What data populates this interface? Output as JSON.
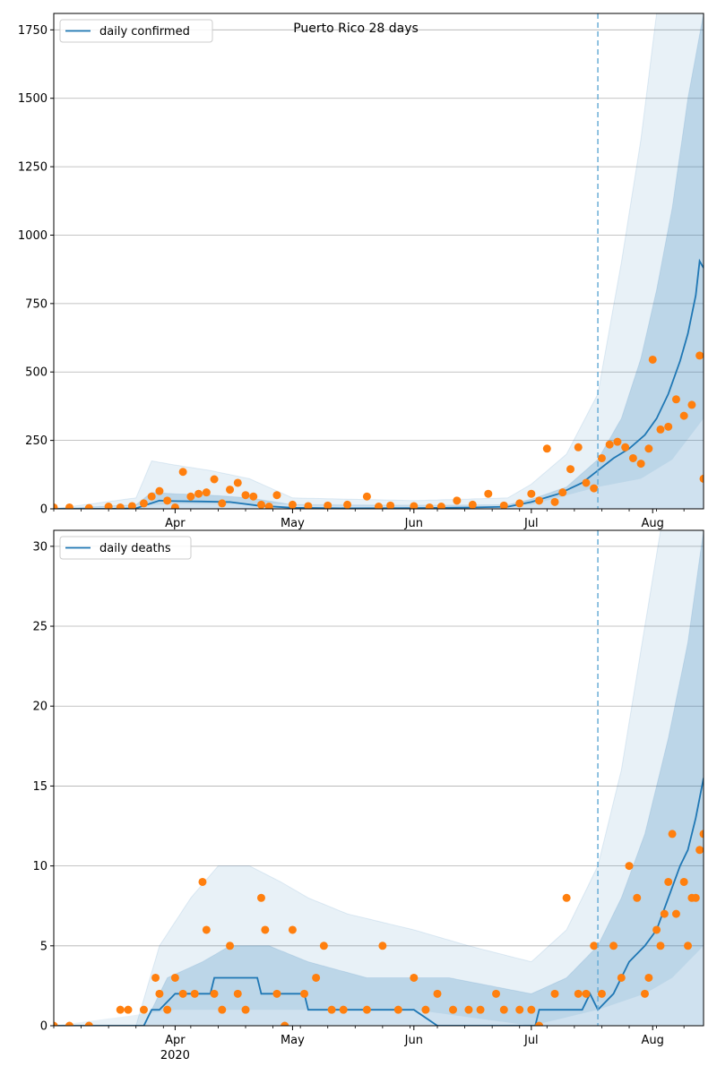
{
  "chart_data": [
    {
      "type": "line",
      "title": "Puerto Rico 28 days",
      "xlabel": "",
      "ylabel": "",
      "ylim": [
        0,
        1810
      ],
      "yticks": [
        0,
        250,
        500,
        750,
        1000,
        1250,
        1500,
        1750
      ],
      "xlim": [
        "2020-03-01",
        "2020-08-14"
      ],
      "x_major_ticks": [
        {
          "date": "2020-04-01",
          "label": "Apr",
          "sublabel": "2020"
        },
        {
          "date": "2020-05-01",
          "label": "May"
        },
        {
          "date": "2020-06-01",
          "label": "Jun"
        },
        {
          "date": "2020-07-01",
          "label": "Jul"
        },
        {
          "date": "2020-08-01",
          "label": "Aug"
        }
      ],
      "grid": "horizontal",
      "legend_position": "top-left",
      "forecast_start": "2020-07-18",
      "series": [
        {
          "name": "daily confirmed",
          "kind": "median line",
          "color": "#1f77b4",
          "x": [
            "2020-03-01",
            "2020-03-15",
            "2020-03-22",
            "2020-03-28",
            "2020-04-01",
            "2020-04-08",
            "2020-04-15",
            "2020-04-22",
            "2020-05-01",
            "2020-05-15",
            "2020-06-01",
            "2020-06-15",
            "2020-06-25",
            "2020-07-01",
            "2020-07-08",
            "2020-07-14",
            "2020-07-18",
            "2020-07-22",
            "2020-07-26",
            "2020-07-30",
            "2020-08-02",
            "2020-08-05",
            "2020-08-08",
            "2020-08-10",
            "2020-08-12",
            "2020-08-13",
            "2020-08-14"
          ],
          "values": [
            0,
            0,
            2,
            30,
            28,
            27,
            25,
            12,
            4,
            2,
            3,
            5,
            8,
            25,
            55,
            95,
            140,
            185,
            220,
            270,
            330,
            420,
            540,
            640,
            780,
            905,
            880
          ]
        },
        {
          "name": "observed daily confirmed",
          "kind": "points",
          "color": "#ff7f0e",
          "x": [
            "2020-03-01",
            "2020-03-05",
            "2020-03-10",
            "2020-03-15",
            "2020-03-18",
            "2020-03-21",
            "2020-03-24",
            "2020-03-26",
            "2020-03-28",
            "2020-03-30",
            "2020-04-01",
            "2020-04-03",
            "2020-04-05",
            "2020-04-07",
            "2020-04-09",
            "2020-04-11",
            "2020-04-13",
            "2020-04-15",
            "2020-04-17",
            "2020-04-19",
            "2020-04-21",
            "2020-04-23",
            "2020-04-25",
            "2020-04-27",
            "2020-05-01",
            "2020-05-05",
            "2020-05-10",
            "2020-05-15",
            "2020-05-20",
            "2020-05-23",
            "2020-05-26",
            "2020-06-01",
            "2020-06-05",
            "2020-06-08",
            "2020-06-12",
            "2020-06-16",
            "2020-06-20",
            "2020-06-24",
            "2020-06-28",
            "2020-07-01",
            "2020-07-03",
            "2020-07-05",
            "2020-07-07",
            "2020-07-09",
            "2020-07-11",
            "2020-07-13",
            "2020-07-15",
            "2020-07-17",
            "2020-07-19",
            "2020-07-21",
            "2020-07-23",
            "2020-07-25",
            "2020-07-27",
            "2020-07-29",
            "2020-07-31",
            "2020-08-01",
            "2020-08-03",
            "2020-08-05",
            "2020-08-07",
            "2020-08-09",
            "2020-08-11",
            "2020-08-13",
            "2020-08-14"
          ],
          "values": [
            5,
            5,
            3,
            8,
            5,
            10,
            20,
            45,
            65,
            30,
            5,
            135,
            45,
            55,
            60,
            108,
            20,
            70,
            95,
            50,
            45,
            15,
            8,
            50,
            15,
            10,
            12,
            15,
            45,
            8,
            12,
            10,
            5,
            8,
            30,
            15,
            55,
            12,
            20,
            55,
            30,
            220,
            25,
            60,
            145,
            225,
            95,
            75,
            185,
            235,
            245,
            225,
            185,
            165,
            220,
            545,
            290,
            300,
            400,
            340,
            380,
            560,
            110
          ]
        },
        {
          "name": "90% interval upper",
          "kind": "band edge",
          "color": "#1f77b4",
          "x": [
            "2020-03-01",
            "2020-03-22",
            "2020-03-26",
            "2020-04-01",
            "2020-04-10",
            "2020-04-20",
            "2020-05-01",
            "2020-06-01",
            "2020-06-25",
            "2020-07-01",
            "2020-07-10",
            "2020-07-18",
            "2020-07-24",
            "2020-07-29",
            "2020-08-02",
            "2020-08-05",
            "2020-08-14"
          ],
          "values": [
            0,
            40,
            175,
            160,
            140,
            110,
            40,
            30,
            40,
            90,
            200,
            420,
            900,
            1350,
            1810,
            1810,
            1810
          ]
        },
        {
          "name": "50% interval upper",
          "kind": "band edge",
          "color": "#1f77b4",
          "x": [
            "2020-03-01",
            "2020-03-22",
            "2020-03-26",
            "2020-04-01",
            "2020-04-10",
            "2020-04-20",
            "2020-05-01",
            "2020-06-01",
            "2020-06-25",
            "2020-07-01",
            "2020-07-10",
            "2020-07-18",
            "2020-07-24",
            "2020-07-29",
            "2020-08-02",
            "2020-08-06",
            "2020-08-10",
            "2020-08-14"
          ],
          "values": [
            0,
            15,
            60,
            55,
            50,
            40,
            15,
            10,
            15,
            35,
            80,
            180,
            330,
            550,
            800,
            1100,
            1500,
            1810
          ]
        },
        {
          "name": "20% interval lower",
          "kind": "band edge",
          "color": "#1f77b4",
          "x": [
            "2020-03-01",
            "2020-04-01",
            "2020-07-01",
            "2020-07-18",
            "2020-07-29",
            "2020-08-06",
            "2020-08-14"
          ],
          "values": [
            0,
            18,
            15,
            80,
            110,
            180,
            330
          ]
        }
      ]
    },
    {
      "type": "line",
      "title": "",
      "xlabel": "",
      "ylabel": "",
      "ylim": [
        0,
        31
      ],
      "yticks": [
        0,
        5,
        10,
        15,
        20,
        25,
        30
      ],
      "xlim": [
        "2020-03-01",
        "2020-08-14"
      ],
      "x_major_ticks": [
        {
          "date": "2020-04-01",
          "label": "Apr",
          "sublabel": "2020"
        },
        {
          "date": "2020-05-01",
          "label": "May"
        },
        {
          "date": "2020-06-01",
          "label": "Jun"
        },
        {
          "date": "2020-07-01",
          "label": "Jul"
        },
        {
          "date": "2020-08-01",
          "label": "Aug"
        }
      ],
      "grid": "horizontal",
      "legend_position": "top-left",
      "forecast_start": "2020-07-18",
      "series": [
        {
          "name": "daily deaths",
          "kind": "median line",
          "color": "#1f77b4",
          "x": [
            "2020-03-01",
            "2020-03-24",
            "2020-03-26",
            "2020-03-28",
            "2020-04-01",
            "2020-04-10",
            "2020-04-11",
            "2020-04-22",
            "2020-04-23",
            "2020-05-04",
            "2020-05-05",
            "2020-06-01",
            "2020-06-07",
            "2020-07-02",
            "2020-07-03",
            "2020-07-12",
            "2020-07-14",
            "2020-07-16",
            "2020-07-18",
            "2020-07-22",
            "2020-07-26",
            "2020-07-30",
            "2020-08-02",
            "2020-08-05",
            "2020-08-08",
            "2020-08-10",
            "2020-08-12",
            "2020-08-14"
          ],
          "values": [
            0,
            0,
            1,
            1,
            2,
            2,
            3,
            3,
            2,
            2,
            1,
            1,
            0,
            0,
            1,
            1,
            1,
            2,
            1,
            2,
            4,
            5,
            6,
            8,
            10,
            11,
            13,
            15.5
          ]
        },
        {
          "name": "observed daily deaths",
          "kind": "points",
          "color": "#ff7f0e",
          "x": [
            "2020-03-01",
            "2020-03-05",
            "2020-03-10",
            "2020-03-18",
            "2020-03-20",
            "2020-03-24",
            "2020-03-27",
            "2020-03-28",
            "2020-03-30",
            "2020-04-01",
            "2020-04-03",
            "2020-04-06",
            "2020-04-08",
            "2020-04-09",
            "2020-04-11",
            "2020-04-13",
            "2020-04-15",
            "2020-04-17",
            "2020-04-19",
            "2020-04-23",
            "2020-04-24",
            "2020-04-27",
            "2020-04-29",
            "2020-05-01",
            "2020-05-04",
            "2020-05-07",
            "2020-05-09",
            "2020-05-11",
            "2020-05-14",
            "2020-05-20",
            "2020-05-24",
            "2020-05-28",
            "2020-06-01",
            "2020-06-04",
            "2020-06-07",
            "2020-06-11",
            "2020-06-15",
            "2020-06-18",
            "2020-06-22",
            "2020-06-24",
            "2020-06-28",
            "2020-07-01",
            "2020-07-03",
            "2020-07-07",
            "2020-07-10",
            "2020-07-13",
            "2020-07-15",
            "2020-07-17",
            "2020-07-19",
            "2020-07-22",
            "2020-07-24",
            "2020-07-26",
            "2020-07-28",
            "2020-07-30",
            "2020-07-31",
            "2020-08-02",
            "2020-08-03",
            "2020-08-04",
            "2020-08-05",
            "2020-08-06",
            "2020-08-07",
            "2020-08-09",
            "2020-08-10",
            "2020-08-11",
            "2020-08-12",
            "2020-08-13",
            "2020-08-14"
          ],
          "values": [
            0,
            0,
            0,
            1,
            1,
            1,
            3,
            2,
            1,
            3,
            2,
            2,
            9,
            6,
            2,
            1,
            5,
            2,
            1,
            8,
            6,
            2,
            0,
            6,
            2,
            3,
            5,
            1,
            1,
            1,
            5,
            1,
            3,
            1,
            2,
            1,
            1,
            1,
            2,
            1,
            1,
            1,
            0,
            2,
            8,
            2,
            2,
            5,
            2,
            5,
            3,
            10,
            8,
            2,
            3,
            6,
            5,
            7,
            9,
            12,
            7,
            9,
            5,
            8,
            8,
            11,
            12
          ]
        },
        {
          "name": "90% interval upper",
          "kind": "band edge",
          "color": "#1f77b4",
          "x": [
            "2020-03-01",
            "2020-03-22",
            "2020-03-28",
            "2020-04-05",
            "2020-04-12",
            "2020-04-20",
            "2020-04-28",
            "2020-05-05",
            "2020-05-15",
            "2020-06-01",
            "2020-06-15",
            "2020-07-01",
            "2020-07-10",
            "2020-07-18",
            "2020-07-24",
            "2020-07-30",
            "2020-08-03",
            "2020-08-14"
          ],
          "values": [
            0,
            0,
            5,
            8,
            10,
            10,
            9,
            8,
            7,
            6,
            5,
            4,
            6,
            10,
            16,
            25,
            31,
            31
          ]
        },
        {
          "name": "50% interval upper",
          "kind": "band edge",
          "color": "#1f77b4",
          "x": [
            "2020-03-01",
            "2020-03-24",
            "2020-03-30",
            "2020-04-08",
            "2020-04-15",
            "2020-04-25",
            "2020-05-05",
            "2020-05-20",
            "2020-06-10",
            "2020-07-01",
            "2020-07-10",
            "2020-07-18",
            "2020-07-24",
            "2020-07-30",
            "2020-08-05",
            "2020-08-10",
            "2020-08-14"
          ],
          "values": [
            0,
            0,
            3,
            4,
            5,
            5,
            4,
            3,
            3,
            2,
            3,
            5,
            8,
            12,
            18,
            24,
            31
          ]
        },
        {
          "name": "20% interval lower",
          "kind": "band edge",
          "color": "#1f77b4",
          "x": [
            "2020-03-01",
            "2020-04-01",
            "2020-05-01",
            "2020-06-01",
            "2020-07-01",
            "2020-07-18",
            "2020-07-30",
            "2020-08-06",
            "2020-08-14"
          ],
          "values": [
            0,
            1,
            1,
            1,
            0,
            1,
            2,
            3,
            5
          ]
        }
      ]
    }
  ]
}
